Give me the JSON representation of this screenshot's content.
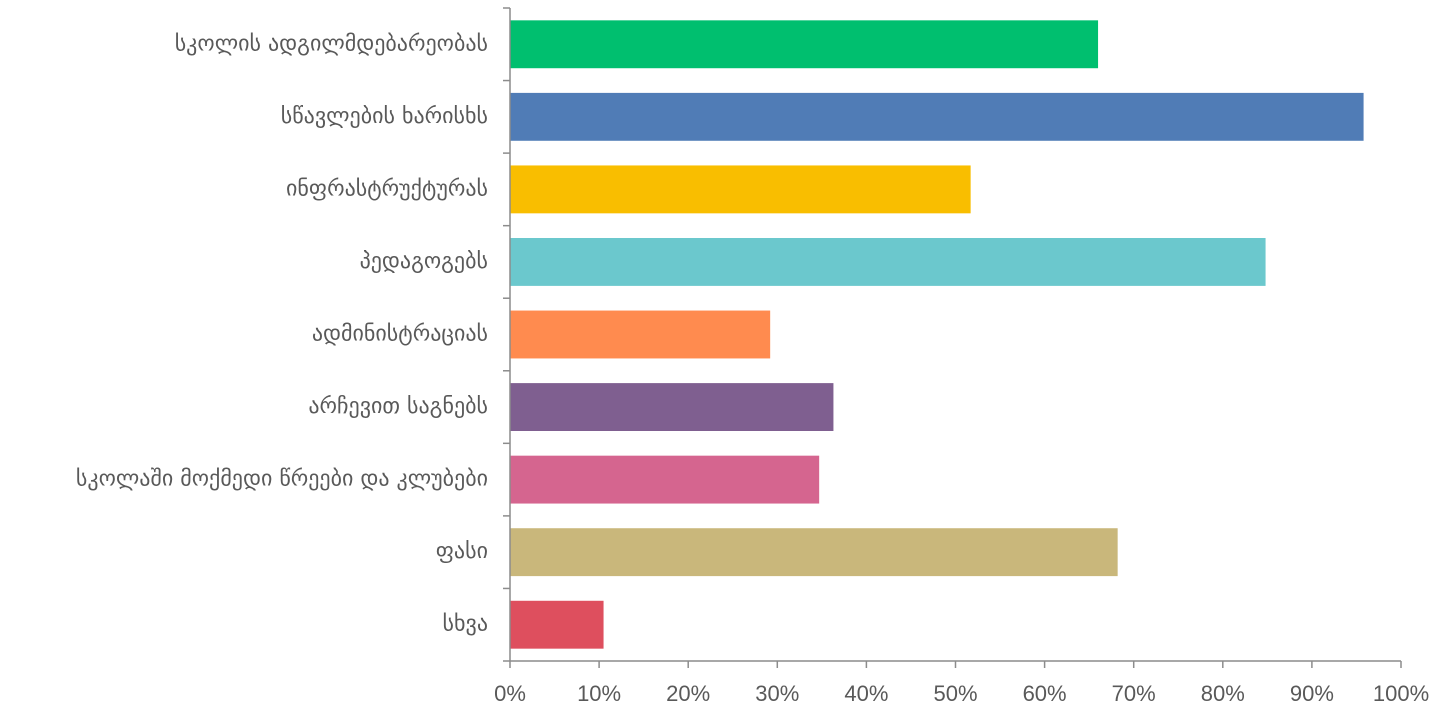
{
  "chart_data": {
    "type": "bar",
    "orientation": "horizontal",
    "categories": [
      "სკოლის ადგილმდებარეობას",
      "სწავლების ხარისხს",
      "ინფრასტრუქტურას",
      "პედაგოგებს",
      "ადმინისტრაციას",
      "არჩევით საგნებს",
      "სკოლაში მოქმედი წრეები და კლუბები",
      "ფასი",
      "სხვა"
    ],
    "values": [
      66,
      95.8,
      51.7,
      84.8,
      29.2,
      36.3,
      34.7,
      68.2,
      10.5
    ],
    "colors": [
      "#00BF6F",
      "#507CB6",
      "#F9BE00",
      "#6BC8CD",
      "#FF8B4F",
      "#7F5F90",
      "#D5658F",
      "#C9B77B",
      "#DE4F5E"
    ],
    "xlim": [
      0,
      100
    ],
    "x_ticks": [
      "0%",
      "10%",
      "20%",
      "30%",
      "40%",
      "50%",
      "60%",
      "70%",
      "80%",
      "90%",
      "100%"
    ],
    "title": "",
    "xlabel": "",
    "ylabel": "",
    "grid": false,
    "legend": "none"
  }
}
